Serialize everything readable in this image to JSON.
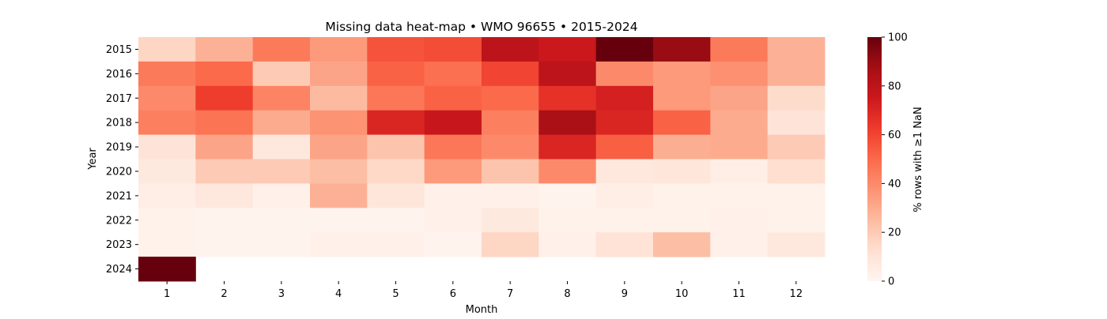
{
  "chart_data": {
    "type": "heatmap",
    "title": "Missing data heat-map • WMO 96655 • 2015-2024",
    "xlabel": "Month",
    "ylabel": "Year",
    "x_categories": [
      "1",
      "2",
      "3",
      "4",
      "5",
      "6",
      "7",
      "8",
      "9",
      "10",
      "11",
      "12"
    ],
    "y_categories": [
      "2015",
      "2016",
      "2017",
      "2018",
      "2019",
      "2020",
      "2021",
      "2022",
      "2023",
      "2024"
    ],
    "values": [
      [
        16,
        28,
        45,
        35,
        56,
        58,
        80,
        75,
        100,
        90,
        45,
        28
      ],
      [
        45,
        50,
        20,
        32,
        52,
        48,
        60,
        80,
        40,
        35,
        38,
        28
      ],
      [
        40,
        62,
        42,
        25,
        46,
        52,
        50,
        66,
        72,
        35,
        32,
        14
      ],
      [
        43,
        47,
        30,
        37,
        70,
        76,
        43,
        86,
        70,
        52,
        30,
        10
      ],
      [
        10,
        32,
        8,
        32,
        22,
        46,
        40,
        70,
        53,
        29,
        30,
        20
      ],
      [
        7,
        20,
        20,
        24,
        15,
        35,
        22,
        40,
        8,
        9,
        4,
        13
      ],
      [
        4,
        8,
        3,
        28,
        9,
        3,
        3,
        1,
        4,
        2,
        2,
        2
      ],
      [
        2,
        1,
        1,
        1,
        1,
        3,
        7,
        2,
        2,
        2,
        3,
        2
      ],
      [
        2,
        1,
        1,
        3,
        3,
        1,
        16,
        3,
        11,
        24,
        3,
        8
      ],
      [
        100,
        null,
        null,
        null,
        null,
        null,
        null,
        null,
        null,
        null,
        null,
        null
      ]
    ],
    "colormap": "Reds",
    "vmin": 0,
    "vmax": 100,
    "colorbar": {
      "label": "% rows with ≥1 NaN",
      "ticks": [
        0,
        20,
        40,
        60,
        80,
        100
      ],
      "tick_labels": [
        "0",
        "20",
        "40",
        "60",
        "80",
        "100"
      ]
    }
  }
}
